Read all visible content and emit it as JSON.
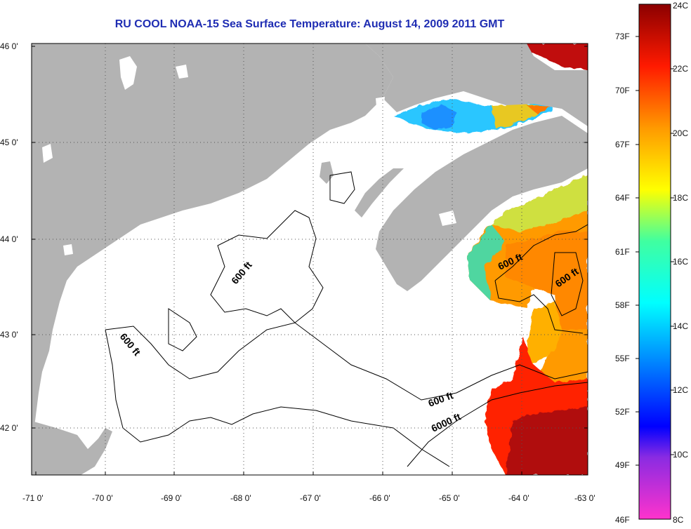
{
  "title": "RU COOL  NOAA-15  Sea Surface Temperature:  August 14, 2009 2011 GMT",
  "lat_ticks": [
    "46 0'",
    "45 0'",
    "44 0'",
    "43 0'",
    "42 0'"
  ],
  "lon_ticks": [
    "-71 0'",
    "-70 0'",
    "-69 0'",
    "-68 0'",
    "-67 0'",
    "-66 0'",
    "-65 0'",
    "-64 0'",
    "-63 0'"
  ],
  "colorbar": {
    "celsius": [
      "24C",
      "22C",
      "20C",
      "18C",
      "16C",
      "14C",
      "12C",
      "10C",
      "8C"
    ],
    "fahrenheit": [
      "73F",
      "70F",
      "67F",
      "64F",
      "61F",
      "58F",
      "55F",
      "52F",
      "49F",
      "46F"
    ]
  },
  "contour_labels": [
    "600 ft",
    "600 ft",
    "600 ft",
    "600 ft",
    "6000 ft"
  ],
  "colors": {
    "land": "#b3b3b3",
    "no_data": "#ffffff",
    "title": "#1f2db3"
  }
}
